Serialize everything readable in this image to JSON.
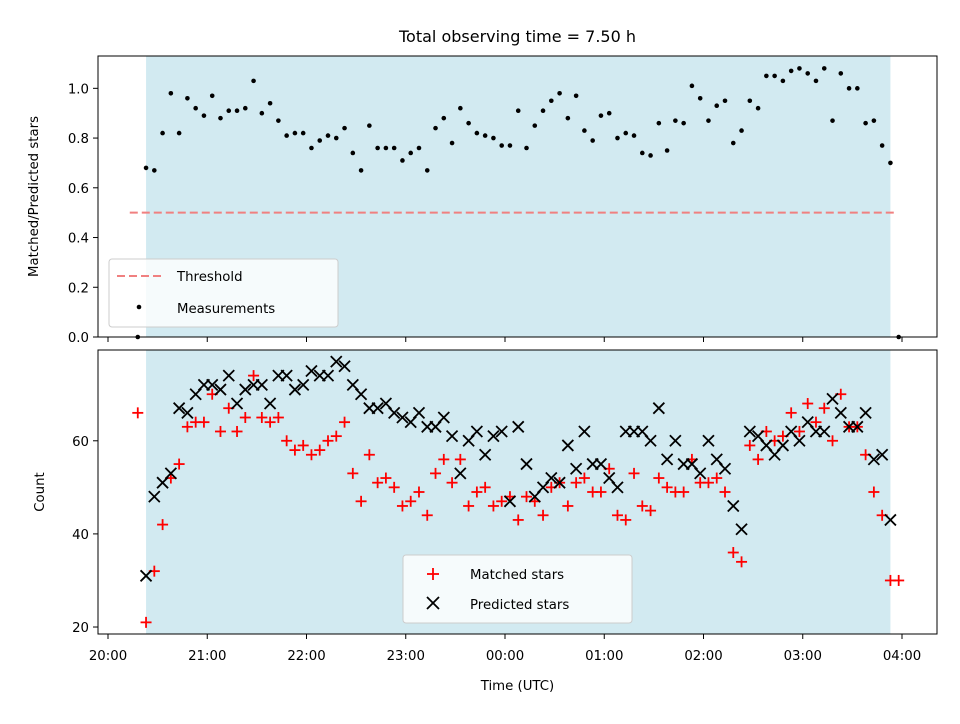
{
  "chart_data": [
    {
      "type": "scatter",
      "title": "Total observing time = 7.50 h",
      "ylabel": "Matched/Predicted stars",
      "xlabel": "",
      "ylim": [
        0,
        1.13
      ],
      "yticks": [
        "0.0",
        "0.2",
        "0.4",
        "0.6",
        "0.8",
        "1.0"
      ],
      "observing_window": {
        "start": "20:23",
        "end": "03:53"
      },
      "threshold": 0.5,
      "grid": false,
      "legend": {
        "position": "lower-left",
        "entries": [
          "Threshold",
          "Measurements"
        ]
      },
      "colors": {
        "threshold": "#f08080",
        "measurements": "#000000",
        "shade": "#add8e6"
      },
      "x": [
        "20:18",
        "20:23",
        "20:28",
        "20:33",
        "20:38",
        "20:43",
        "20:48",
        "20:53",
        "20:58",
        "21:03",
        "21:08",
        "21:13",
        "21:18",
        "21:23",
        "21:28",
        "21:33",
        "21:38",
        "21:43",
        "21:48",
        "21:53",
        "21:58",
        "22:03",
        "22:08",
        "22:13",
        "22:18",
        "22:23",
        "22:28",
        "22:33",
        "22:38",
        "22:43",
        "22:48",
        "22:53",
        "22:58",
        "23:03",
        "23:08",
        "23:13",
        "23:18",
        "23:23",
        "23:28",
        "23:33",
        "23:38",
        "23:43",
        "23:48",
        "23:53",
        "23:58",
        "00:03",
        "00:08",
        "00:13",
        "00:18",
        "00:23",
        "00:28",
        "00:33",
        "00:38",
        "00:43",
        "00:48",
        "00:53",
        "00:58",
        "01:03",
        "01:08",
        "01:13",
        "01:18",
        "01:23",
        "01:28",
        "01:33",
        "01:38",
        "01:43",
        "01:48",
        "01:53",
        "01:58",
        "02:03",
        "02:08",
        "02:13",
        "02:18",
        "02:23",
        "02:28",
        "02:33",
        "02:38",
        "02:43",
        "02:48",
        "02:53",
        "02:58",
        "03:03",
        "03:08",
        "03:13",
        "03:18",
        "03:23",
        "03:28",
        "03:33",
        "03:38",
        "03:43",
        "03:48",
        "03:53",
        "03:58"
      ],
      "series": [
        {
          "name": "Measurements",
          "values": [
            0.0,
            0.68,
            0.67,
            0.82,
            0.98,
            0.82,
            0.96,
            0.92,
            0.89,
            0.97,
            0.88,
            0.91,
            0.91,
            0.92,
            1.03,
            0.9,
            0.94,
            0.87,
            0.81,
            0.82,
            0.82,
            0.76,
            0.79,
            0.81,
            0.8,
            0.84,
            0.74,
            0.67,
            0.85,
            0.76,
            0.76,
            0.76,
            0.71,
            0.74,
            0.76,
            0.67,
            0.84,
            0.88,
            0.78,
            0.92,
            0.86,
            0.82,
            0.81,
            0.8,
            0.77,
            0.77,
            0.91,
            0.76,
            0.85,
            0.91,
            0.95,
            0.98,
            0.88,
            0.97,
            0.83,
            0.79,
            0.89,
            0.9,
            0.8,
            0.82,
            0.81,
            0.74,
            0.73,
            0.86,
            0.75,
            0.87,
            0.86,
            1.01,
            0.96,
            0.87,
            0.93,
            0.95,
            0.78,
            0.83,
            0.95,
            0.92,
            1.05,
            1.05,
            1.03,
            1.07,
            1.08,
            1.06,
            1.03,
            1.08,
            0.87,
            1.06,
            1.0,
            1.0,
            0.86,
            0.87,
            0.77,
            0.7,
            0.0
          ]
        }
      ]
    },
    {
      "type": "scatter",
      "title": "",
      "ylabel": "Count",
      "xlabel": "Time (UTC)",
      "ylim": [
        18.5,
        79.5
      ],
      "yticks": [
        "20",
        "40",
        "60"
      ],
      "xticks": [
        "20:00",
        "21:00",
        "22:00",
        "23:00",
        "00:00",
        "01:00",
        "02:00",
        "03:00",
        "04:00"
      ],
      "observing_window": {
        "start": "20:23",
        "end": "03:53"
      },
      "grid": false,
      "legend": {
        "position": "lower-center",
        "entries": [
          "Matched stars",
          "Predicted stars"
        ]
      },
      "colors": {
        "matched": "#ff0000",
        "predicted": "#000000",
        "shade": "#add8e6"
      },
      "x": [
        "20:18",
        "20:23",
        "20:28",
        "20:33",
        "20:38",
        "20:43",
        "20:48",
        "20:53",
        "20:58",
        "21:03",
        "21:08",
        "21:13",
        "21:18",
        "21:23",
        "21:28",
        "21:33",
        "21:38",
        "21:43",
        "21:48",
        "21:53",
        "21:58",
        "22:03",
        "22:08",
        "22:13",
        "22:18",
        "22:23",
        "22:28",
        "22:33",
        "22:38",
        "22:43",
        "22:48",
        "22:53",
        "22:58",
        "23:03",
        "23:08",
        "23:13",
        "23:18",
        "23:23",
        "23:28",
        "23:33",
        "23:38",
        "23:43",
        "23:48",
        "23:53",
        "23:58",
        "00:03",
        "00:08",
        "00:13",
        "00:18",
        "00:23",
        "00:28",
        "00:33",
        "00:38",
        "00:43",
        "00:48",
        "00:53",
        "00:58",
        "01:03",
        "01:08",
        "01:13",
        "01:18",
        "01:23",
        "01:28",
        "01:33",
        "01:38",
        "01:43",
        "01:48",
        "01:53",
        "01:58",
        "02:03",
        "02:08",
        "02:13",
        "02:18",
        "02:23",
        "02:28",
        "02:33",
        "02:38",
        "02:43",
        "02:48",
        "02:53",
        "02:58",
        "03:03",
        "03:08",
        "03:13",
        "03:18",
        "03:23",
        "03:28",
        "03:33",
        "03:38",
        "03:43",
        "03:48",
        "03:53",
        "03:58"
      ],
      "series": [
        {
          "name": "Matched stars",
          "values": [
            66,
            21,
            32,
            42,
            52,
            55,
            63,
            64,
            64,
            70,
            62,
            67,
            62,
            65,
            74,
            65,
            64,
            65,
            60,
            58,
            59,
            57,
            58,
            60,
            61,
            64,
            53,
            47,
            57,
            51,
            52,
            50,
            46,
            47,
            49,
            44,
            53,
            56,
            51,
            56,
            46,
            49,
            50,
            46,
            47,
            48,
            43,
            48,
            47,
            44,
            50,
            51,
            46,
            51,
            52,
            49,
            49,
            54,
            44,
            43,
            53,
            46,
            45,
            52,
            50,
            49,
            49,
            56,
            51,
            51,
            52,
            49,
            36,
            34,
            59,
            56,
            62,
            60,
            61,
            66,
            62,
            68,
            64,
            67,
            60,
            70,
            63,
            63,
            57,
            49,
            44,
            30,
            30
          ]
        },
        {
          "name": "Predicted stars",
          "values": [
            null,
            31,
            48,
            51,
            53,
            67,
            66,
            70,
            72,
            72,
            71,
            74,
            68,
            71,
            72,
            72,
            68,
            74,
            74,
            71,
            72,
            75,
            74,
            74,
            77,
            76,
            72,
            70,
            67,
            67,
            68,
            66,
            65,
            64,
            66,
            63,
            63,
            65,
            61,
            53,
            60,
            62,
            57,
            61,
            62,
            47,
            63,
            55,
            48,
            50,
            52,
            51,
            59,
            54,
            62,
            55,
            55,
            52,
            50,
            62,
            62,
            62,
            60,
            67,
            56,
            60,
            55,
            55,
            53,
            60,
            56,
            54,
            46,
            41,
            62,
            61,
            59,
            57,
            59,
            62,
            60,
            64,
            62,
            62,
            69,
            66,
            63,
            63,
            66,
            56,
            57,
            43,
            null
          ]
        }
      ]
    }
  ]
}
